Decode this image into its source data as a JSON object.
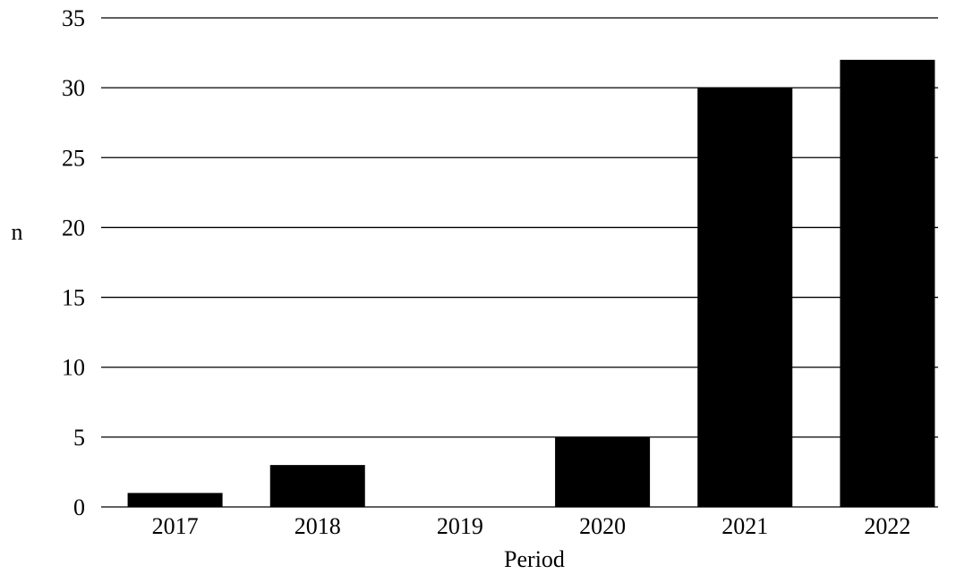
{
  "chart_data": {
    "type": "bar",
    "categories": [
      "2017",
      "2018",
      "2019",
      "2020",
      "2021",
      "2022"
    ],
    "values": [
      1,
      3,
      0,
      5,
      30,
      32
    ],
    "xlabel": "Period",
    "ylabel": "n",
    "ylim": [
      0,
      35
    ],
    "yticks": [
      0,
      5,
      10,
      15,
      20,
      25,
      30,
      35
    ],
    "grid": true,
    "bar_color": "#000000",
    "grid_color": "#000000"
  }
}
